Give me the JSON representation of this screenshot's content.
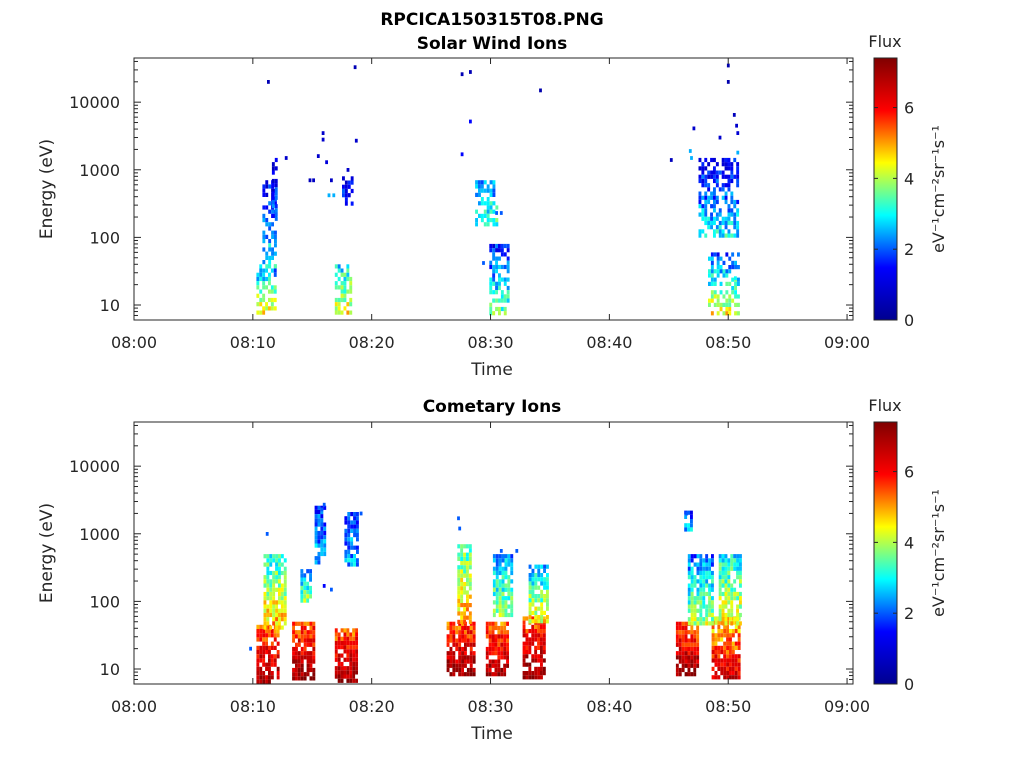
{
  "figure": {
    "filename": "RPCICA150315T08.PNG"
  },
  "colors": {
    "jet_stops": [
      "#00008f",
      "#0000ff",
      "#00ffff",
      "#ffff00",
      "#ff0000",
      "#800000"
    ]
  },
  "chart_data": [
    {
      "type": "heatmap",
      "title": "Solar Wind Ions",
      "xlabel": "Time",
      "ylabel": "Energy (eV)",
      "x_ticks": [
        "08:00",
        "08:10",
        "08:20",
        "08:30",
        "08:40",
        "08:50",
        "09:00"
      ],
      "y_ticks": [
        "10",
        "100",
        "1000",
        "10000"
      ],
      "y_scale": "log",
      "ylim": [
        6,
        45000
      ],
      "xlim_minutes": [
        0,
        60.5
      ],
      "colorbar": {
        "label": "Flux",
        "unit": "eV⁻¹cm⁻²sr⁻¹s⁻¹",
        "range": [
          0,
          7.4
        ],
        "ticks": [
          "0",
          "2",
          "4",
          "6"
        ]
      },
      "clusters": [
        {
          "t": [
            10.3,
            12.0
          ],
          "e": [
            8,
            40
          ],
          "flux": [
            1,
            4.5
          ]
        },
        {
          "t": [
            10.8,
            11.8
          ],
          "e": [
            40,
            700
          ],
          "flux": [
            0.3,
            3
          ]
        },
        {
          "t": [
            11.6,
            12.0
          ],
          "e": [
            200,
            1500
          ],
          "flux": [
            0.3,
            2
          ]
        },
        {
          "t": [
            16.9,
            18.3
          ],
          "e": [
            8,
            40
          ],
          "flux": [
            2,
            4.5
          ]
        },
        {
          "t": [
            17.5,
            18.4
          ],
          "e": [
            300,
            800
          ],
          "flux": [
            0.3,
            2
          ]
        },
        {
          "t": [
            29.9,
            31.4
          ],
          "e": [
            8,
            80
          ],
          "flux": [
            0.5,
            3.5
          ]
        },
        {
          "t": [
            28.7,
            30.6
          ],
          "e": [
            150,
            700
          ],
          "flux": [
            1.5,
            3.5
          ]
        },
        {
          "t": [
            48.3,
            50.8
          ],
          "e": [
            8,
            60
          ],
          "flux": [
            0.5,
            4.5
          ]
        },
        {
          "t": [
            47.5,
            50.9
          ],
          "e": [
            100,
            1500
          ],
          "flux": [
            0.3,
            3
          ]
        }
      ],
      "points": [
        [
          11.3,
          20000,
          0.5
        ],
        [
          18.6,
          33000,
          0.5
        ],
        [
          27.6,
          26000,
          0.5
        ],
        [
          28.3,
          28000,
          0.5
        ],
        [
          34.2,
          15000,
          0.4
        ],
        [
          50.0,
          35000,
          0.4
        ],
        [
          50.0,
          20000,
          0.4
        ],
        [
          50.5,
          6500,
          0.6
        ],
        [
          50.7,
          4500,
          0.8
        ],
        [
          50.8,
          3500,
          0.9
        ],
        [
          28.3,
          5200,
          1.5
        ],
        [
          27.6,
          1700,
          1.5
        ],
        [
          45.2,
          1400,
          0.6
        ],
        [
          47.1,
          4100,
          0.8
        ],
        [
          46.8,
          1900,
          2.5
        ],
        [
          46.9,
          1500,
          2.5
        ],
        [
          15.9,
          3500,
          0.8
        ],
        [
          15.9,
          2800,
          0.8
        ],
        [
          15.5,
          1600,
          0.8
        ],
        [
          16.2,
          1300,
          1.0
        ],
        [
          18.7,
          2700,
          0.8
        ],
        [
          12.8,
          1500,
          0.8
        ],
        [
          14.8,
          700,
          0.6
        ],
        [
          16.4,
          420,
          2.5
        ],
        [
          16.8,
          420,
          2.5
        ],
        [
          18.0,
          1000,
          0.8
        ],
        [
          15.1,
          700,
          0.7
        ],
        [
          16.6,
          700,
          0.7
        ],
        [
          50.8,
          1800,
          2.5
        ],
        [
          49.3,
          3000,
          0.8
        ],
        [
          30.9,
          230,
          2.0
        ],
        [
          30.5,
          230,
          2.0
        ],
        [
          29.4,
          42,
          2.0
        ],
        [
          50.6,
          25,
          3.0
        ]
      ]
    },
    {
      "type": "heatmap",
      "title": "Cometary Ions",
      "xlabel": "Time",
      "ylabel": "Energy (eV)",
      "x_ticks": [
        "08:00",
        "08:10",
        "08:20",
        "08:30",
        "08:40",
        "08:50",
        "09:00"
      ],
      "y_ticks": [
        "10",
        "100",
        "1000",
        "10000"
      ],
      "y_scale": "log",
      "ylim": [
        6,
        45000
      ],
      "xlim_minutes": [
        0,
        60.5
      ],
      "colorbar": {
        "label": "Flux",
        "unit": "eV⁻¹cm⁻²sr⁻¹s⁻¹",
        "range": [
          0,
          7.4
        ],
        "ticks": [
          "0",
          "2",
          "4",
          "6"
        ]
      },
      "clusters": [
        {
          "t": [
            10.3,
            12.2
          ],
          "e": [
            7,
            45
          ],
          "flux": [
            4.5,
            7.0
          ]
        },
        {
          "t": [
            13.3,
            15.2
          ],
          "e": [
            7,
            50
          ],
          "flux": [
            4.5,
            7.2
          ]
        },
        {
          "t": [
            16.9,
            18.8
          ],
          "e": [
            7,
            40
          ],
          "flux": [
            4.5,
            7.0
          ]
        },
        {
          "t": [
            26.3,
            28.5
          ],
          "e": [
            8,
            50
          ],
          "flux": [
            4.5,
            7.2
          ]
        },
        {
          "t": [
            29.6,
            31.4
          ],
          "e": [
            8,
            50
          ],
          "flux": [
            4.5,
            7.0
          ]
        },
        {
          "t": [
            32.7,
            34.6
          ],
          "e": [
            8,
            60
          ],
          "flux": [
            4.5,
            7.2
          ]
        },
        {
          "t": [
            45.6,
            47.4
          ],
          "e": [
            8,
            50
          ],
          "flux": [
            4.5,
            7.2
          ]
        },
        {
          "t": [
            48.6,
            50.8
          ],
          "e": [
            8,
            60
          ],
          "flux": [
            3.5,
            6.5
          ]
        },
        {
          "t": [
            10.9,
            12.8
          ],
          "e": [
            40,
            500
          ],
          "flux": [
            2,
            5
          ]
        },
        {
          "t": [
            14.0,
            14.8
          ],
          "e": [
            100,
            300
          ],
          "flux": [
            1.5,
            4
          ]
        },
        {
          "t": [
            27.2,
            28.2
          ],
          "e": [
            50,
            700
          ],
          "flux": [
            2.5,
            5
          ]
        },
        {
          "t": [
            30.2,
            31.8
          ],
          "e": [
            60,
            500
          ],
          "flux": [
            1.5,
            4
          ]
        },
        {
          "t": [
            33.2,
            34.8
          ],
          "e": [
            50,
            350
          ],
          "flux": [
            1.5,
            4.5
          ]
        },
        {
          "t": [
            46.6,
            48.6
          ],
          "e": [
            50,
            500
          ],
          "flux": [
            1,
            4
          ]
        },
        {
          "t": [
            49.2,
            51.0
          ],
          "e": [
            50,
            500
          ],
          "flux": [
            2,
            4.5
          ]
        },
        {
          "t": [
            15.2,
            16.0
          ],
          "e": [
            400,
            2600
          ],
          "flux": [
            1.5,
            2.5
          ]
        },
        {
          "t": [
            17.7,
            18.9
          ],
          "e": [
            350,
            2100
          ],
          "flux": [
            1.5,
            2.5
          ]
        },
        {
          "t": [
            46.3,
            47.0
          ],
          "e": [
            1200,
            2200
          ],
          "flux": [
            1.5,
            2.5
          ]
        }
      ],
      "points": [
        [
          9.8,
          20,
          2.0
        ],
        [
          27.3,
          1700,
          2.0
        ],
        [
          27.4,
          1200,
          2.0
        ],
        [
          16.0,
          2700,
          2.0
        ],
        [
          15.8,
          2300,
          2.0
        ],
        [
          11.2,
          1000,
          2.0
        ],
        [
          19.1,
          2000,
          2.0
        ],
        [
          16.0,
          170,
          1.5
        ],
        [
          32.2,
          560,
          2.0
        ],
        [
          30.9,
          560,
          2.0
        ],
        [
          46.5,
          2000,
          2.0
        ],
        [
          16.6,
          150,
          2.0
        ]
      ]
    }
  ]
}
